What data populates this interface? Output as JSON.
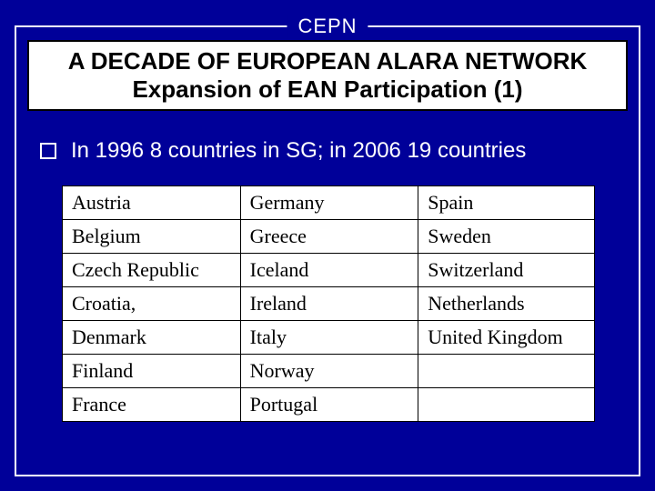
{
  "org_label": "CEPN",
  "title": {
    "line1": "A DECADE  OF EUROPEAN ALARA NETWORK",
    "line2": "Expansion of EAN Participation  (1)"
  },
  "bullet_text": "In 1996 8 countries in SG; in 2006 19 countries",
  "colors": {
    "background": "#000099",
    "frame_border": "#ffffff",
    "title_bg": "#ffffff",
    "title_text": "#000000",
    "bullet_text_color": "#ffffff",
    "table_bg": "#ffffff",
    "table_border": "#000000",
    "table_text": "#000000"
  },
  "table": {
    "columns": 3,
    "rows": [
      [
        "Austria",
        "Germany",
        "Spain"
      ],
      [
        "Belgium",
        "Greece",
        "Sweden"
      ],
      [
        "Czech Republic",
        "Iceland",
        "Switzerland"
      ],
      [
        "Croatia,",
        "Ireland",
        "Netherlands"
      ],
      [
        "Denmark",
        "Italy",
        "United Kingdom"
      ],
      [
        "Finland",
        "Norway",
        ""
      ],
      [
        "France",
        "Portugal",
        ""
      ]
    ]
  },
  "typography": {
    "title_fontsize": 26,
    "bullet_fontsize": 24,
    "table_fontsize": 22,
    "org_label_fontsize": 22
  }
}
